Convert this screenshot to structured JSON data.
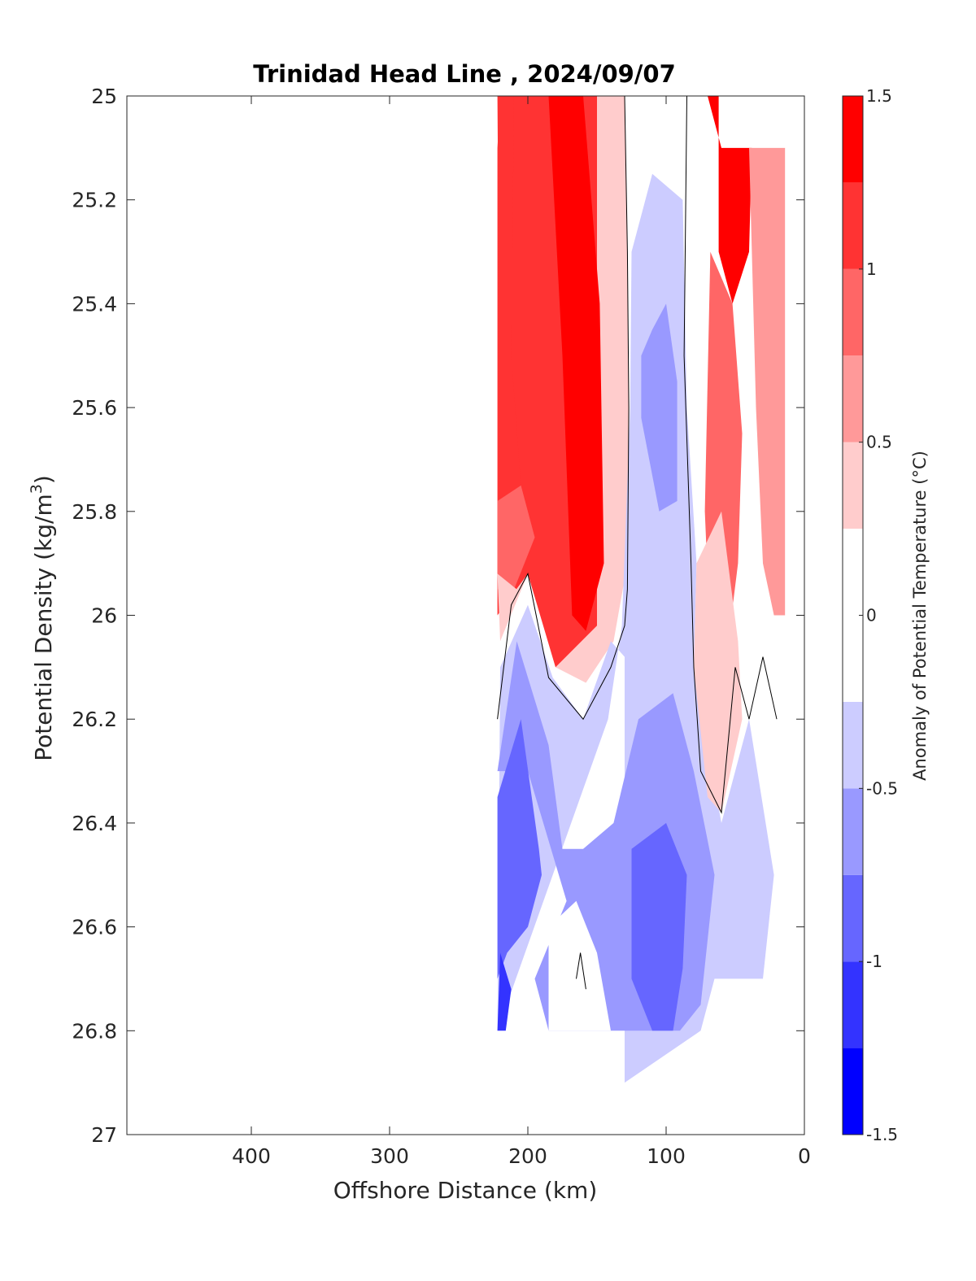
{
  "chart_data": {
    "type": "heatmap",
    "title": "Trinidad Head Line , 2024/09/07",
    "xlabel": "Offshore Distance (km)",
    "ylabel_main": "Potential Density (kg/m",
    "ylabel_sup": "3",
    "ylabel_close": ")",
    "colorbar_label": "Anomaly of Potential Temperature (°C)",
    "xlim": [
      0,
      490
    ],
    "x_reversed": true,
    "ylim": [
      25,
      27
    ],
    "y_reversed": true,
    "x_ticks": [
      400,
      300,
      200,
      100,
      0
    ],
    "x_tick_labels": [
      "400",
      "300",
      "200",
      "100",
      "0"
    ],
    "y_ticks": [
      25,
      25.2,
      25.4,
      25.6,
      25.8,
      26,
      26.2,
      26.4,
      26.6,
      26.8,
      27
    ],
    "y_tick_labels": [
      "25",
      "25.2",
      "25.4",
      "25.6",
      "25.8",
      "26",
      "26.2",
      "26.4",
      "26.6",
      "26.8",
      "27"
    ],
    "colorbar_range": [
      -1.5,
      1.5
    ],
    "colorbar_ticks": [
      1.5,
      1,
      0.5,
      0,
      -0.5,
      -1,
      -1.5
    ],
    "colorbar_tick_labels": [
      "1.5",
      "1",
      "0.5",
      "0",
      "-0.5",
      "-1",
      "-1.5"
    ],
    "levels": [
      -1.5,
      -1.25,
      -1,
      -0.75,
      -0.5,
      -0.25,
      0.25,
      0.5,
      0.75,
      1,
      1.25,
      1.5
    ],
    "level_colors": [
      "#0000ff",
      "#3333ff",
      "#6666ff",
      "#9999ff",
      "#ccccff",
      "#ffffff",
      "#ffcccc",
      "#ff9999",
      "#ff6666",
      "#ff3333",
      "#ff0000"
    ],
    "contour_line_value": 0,
    "regions": [
      {
        "anomaly": 1.1,
        "points": [
          [
            220,
            25
          ],
          [
            150,
            25
          ],
          [
            135,
            25.6
          ],
          [
            140,
            25.95
          ],
          [
            150,
            26.05
          ],
          [
            158,
            26.1
          ],
          [
            180,
            26.1
          ],
          [
            200,
            25.92
          ],
          [
            222,
            26.0
          ],
          [
            222,
            25.1
          ]
        ]
      },
      {
        "anomaly": 0.35,
        "points": [
          [
            150,
            25
          ],
          [
            130,
            25
          ],
          [
            128,
            25.3
          ],
          [
            127,
            25.6
          ],
          [
            128,
            25.9
          ],
          [
            138,
            26.05
          ],
          [
            158,
            26.13
          ],
          [
            180,
            26.1
          ],
          [
            150,
            26.02
          ]
        ]
      },
      {
        "anomaly": 1.4,
        "points": [
          [
            185,
            25
          ],
          [
            160,
            25
          ],
          [
            148,
            25.4
          ],
          [
            145,
            25.9
          ],
          [
            158,
            26.03
          ],
          [
            168,
            26.0
          ],
          [
            175,
            25.5
          ]
        ]
      },
      {
        "anomaly": 1.2,
        "points": [
          [
            222,
            25
          ],
          [
            210,
            25
          ],
          [
            212,
            25.5
          ],
          [
            205,
            25.75
          ],
          [
            220,
            25.78
          ]
        ]
      },
      {
        "anomaly": 0.8,
        "points": [
          [
            222,
            25.78
          ],
          [
            205,
            25.75
          ],
          [
            195,
            25.85
          ],
          [
            210,
            25.95
          ],
          [
            222,
            25.95
          ]
        ]
      },
      {
        "anomaly": 0.35,
        "points": [
          [
            222,
            25.92
          ],
          [
            208,
            25.95
          ],
          [
            200,
            25.92
          ],
          [
            220,
            26.05
          ]
        ]
      },
      {
        "anomaly": -0.4,
        "points": [
          [
            220,
            26.1
          ],
          [
            200,
            25.98
          ],
          [
            182,
            26.12
          ],
          [
            160,
            26.2
          ],
          [
            140,
            26.05
          ],
          [
            130,
            26.08
          ],
          [
            130,
            26.9
          ],
          [
            75,
            26.8
          ],
          [
            65,
            26.7
          ],
          [
            30,
            26.7
          ],
          [
            22,
            26.5
          ],
          [
            40,
            26.2
          ],
          [
            60,
            26.4
          ],
          [
            80,
            26.1
          ],
          [
            78,
            25.9
          ],
          [
            85,
            25.6
          ],
          [
            88,
            25.2
          ],
          [
            110,
            25.15
          ],
          [
            125,
            25.3
          ],
          [
            126,
            25.6
          ],
          [
            132,
            26.02
          ],
          [
            142,
            26.2
          ],
          [
            222,
            26.8
          ]
        ]
      },
      {
        "anomaly": -0.6,
        "points": [
          [
            208,
            26.05
          ],
          [
            185,
            26.25
          ],
          [
            175,
            26.45
          ],
          [
            160,
            26.45
          ],
          [
            138,
            26.4
          ],
          [
            120,
            26.2
          ],
          [
            95,
            26.15
          ],
          [
            80,
            26.3
          ],
          [
            65,
            26.5
          ],
          [
            75,
            26.75
          ],
          [
            90,
            26.8
          ],
          [
            150,
            26.8
          ],
          [
            185,
            26.8
          ],
          [
            195,
            26.7
          ],
          [
            172,
            26.55
          ],
          [
            200,
            26.3
          ],
          [
            222,
            26.3
          ]
        ]
      },
      {
        "anomaly": -0.6,
        "points": [
          [
            110,
            25.45
          ],
          [
            100,
            25.4
          ],
          [
            92,
            25.55
          ],
          [
            92,
            25.78
          ],
          [
            105,
            25.8
          ],
          [
            118,
            25.62
          ],
          [
            118,
            25.5
          ]
        ]
      },
      {
        "anomaly": -0.9,
        "points": [
          [
            222,
            26.35
          ],
          [
            205,
            26.2
          ],
          [
            192,
            26.45
          ],
          [
            190,
            26.5
          ],
          [
            200,
            26.6
          ],
          [
            215,
            26.65
          ],
          [
            222,
            26.7
          ]
        ]
      },
      {
        "anomaly": -0.9,
        "points": [
          [
            125,
            26.45
          ],
          [
            100,
            26.4
          ],
          [
            85,
            26.5
          ],
          [
            88,
            26.68
          ],
          [
            95,
            26.8
          ],
          [
            110,
            26.8
          ],
          [
            125,
            26.7
          ]
        ]
      },
      {
        "anomaly": -1.1,
        "points": [
          [
            220,
            26.65
          ],
          [
            212,
            26.72
          ],
          [
            216,
            26.8
          ],
          [
            222,
            26.8
          ]
        ]
      },
      {
        "anomaly": 0.1,
        "points": [
          [
            185,
            26.6
          ],
          [
            165,
            26.55
          ],
          [
            150,
            26.65
          ],
          [
            140,
            26.8
          ],
          [
            185,
            26.8
          ]
        ]
      },
      {
        "anomaly": 1.25,
        "points": [
          [
            70,
            25
          ],
          [
            62,
            25
          ],
          [
            62,
            25.3
          ],
          [
            52,
            25.4
          ],
          [
            40,
            25.3
          ],
          [
            38,
            25.1
          ],
          [
            60,
            25.1
          ]
        ]
      },
      {
        "anomaly": 0.9,
        "points": [
          [
            68,
            25.3
          ],
          [
            52,
            25.4
          ],
          [
            45,
            25.65
          ],
          [
            48,
            25.9
          ],
          [
            55,
            26.05
          ],
          [
            68,
            26.05
          ],
          [
            72,
            25.8
          ]
        ]
      },
      {
        "anomaly": 0.6,
        "points": [
          [
            40,
            25.1
          ],
          [
            14,
            25.1
          ],
          [
            14,
            26.0
          ],
          [
            22,
            26.0
          ],
          [
            30,
            25.9
          ],
          [
            35,
            25.6
          ]
        ]
      },
      {
        "anomaly": 0.4,
        "points": [
          [
            78,
            25.9
          ],
          [
            60,
            25.8
          ],
          [
            48,
            26.05
          ],
          [
            45,
            26.2
          ],
          [
            60,
            26.38
          ],
          [
            70,
            26.35
          ],
          [
            80,
            26.1
          ]
        ]
      }
    ]
  }
}
